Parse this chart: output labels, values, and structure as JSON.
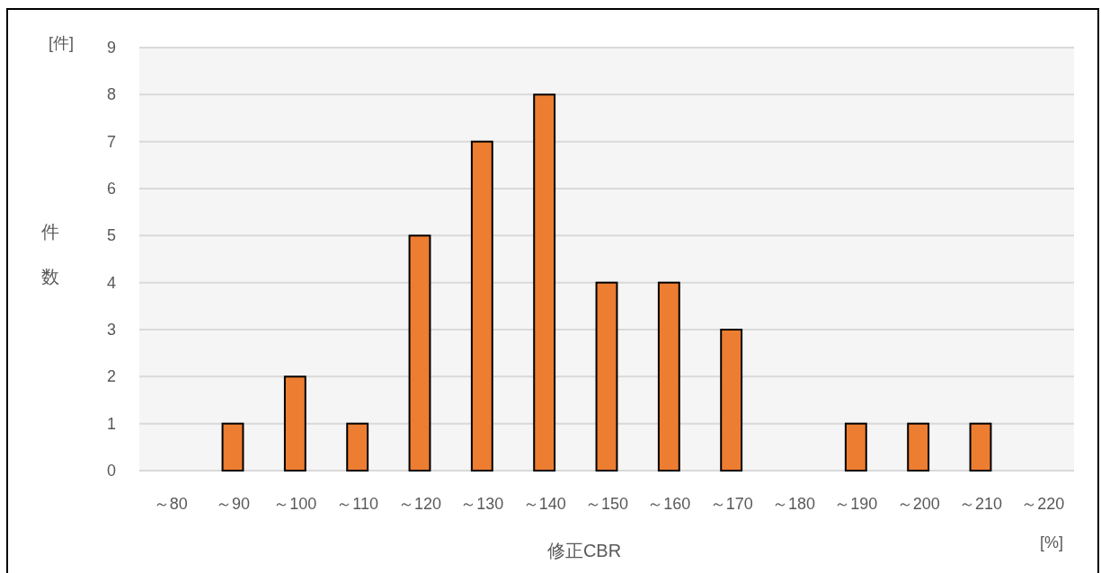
{
  "chart_data": {
    "type": "bar",
    "xlabel": "修正CBR",
    "ylabel": "件数",
    "annotations": [
      "[件]",
      "[%]"
    ],
    "categories": [
      "～80",
      "～90",
      "～100",
      "～110",
      "～120",
      "～130",
      "～140",
      "～150",
      "～160",
      "～170",
      "～180",
      "～190",
      "～200",
      "～210",
      "～220"
    ],
    "values": [
      0,
      1,
      2,
      1,
      5,
      7,
      8,
      4,
      4,
      3,
      0,
      1,
      1,
      1,
      0
    ],
    "color": "#ed7d31",
    "ylim": [
      0,
      9
    ],
    "yticks": [
      0,
      1,
      2,
      3,
      4,
      5,
      6,
      7,
      8,
      9
    ],
    "grid": "y"
  }
}
